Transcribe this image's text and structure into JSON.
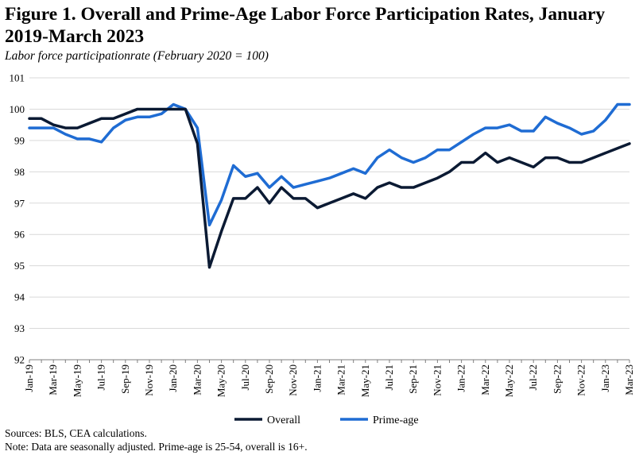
{
  "title": "Figure 1. Overall and Prime-Age Labor Force Participation Rates, January 2019-March 2023",
  "subtitle": "Labor force participationrate (February 2020 = 100)",
  "notes": {
    "sources": "Sources: BLS, CEA calculations.",
    "note": "Note: Data are seasonally adjusted. Prime-age is 25-54, overall is 16+."
  },
  "colors": {
    "overall": "#0b1a33",
    "prime_age": "#1f6cd3",
    "grid": "#d9d9d9"
  },
  "chart_data": {
    "type": "line",
    "x": [
      "Jan-19",
      "Feb-19",
      "Mar-19",
      "Apr-19",
      "May-19",
      "Jun-19",
      "Jul-19",
      "Aug-19",
      "Sep-19",
      "Oct-19",
      "Nov-19",
      "Dec-19",
      "Jan-20",
      "Feb-20",
      "Mar-20",
      "Apr-20",
      "May-20",
      "Jun-20",
      "Jul-20",
      "Aug-20",
      "Sep-20",
      "Oct-20",
      "Nov-20",
      "Dec-20",
      "Jan-21",
      "Feb-21",
      "Mar-21",
      "Apr-21",
      "May-21",
      "Jun-21",
      "Jul-21",
      "Aug-21",
      "Sep-21",
      "Oct-21",
      "Nov-21",
      "Dec-21",
      "Jan-22",
      "Feb-22",
      "Mar-22",
      "Apr-22",
      "May-22",
      "Jun-22",
      "Jul-22",
      "Aug-22",
      "Sep-22",
      "Oct-22",
      "Nov-22",
      "Dec-22",
      "Jan-23",
      "Feb-23",
      "Mar-23"
    ],
    "x_tick_labels": [
      "Jan-19",
      "Mar-19",
      "May-19",
      "Jul-19",
      "Sep-19",
      "Nov-19",
      "Jan-20",
      "Mar-20",
      "May-20",
      "Jul-20",
      "Sep-20",
      "Nov-20",
      "Jan-21",
      "Mar-21",
      "May-21",
      "Jul-21",
      "Sep-21",
      "Nov-21",
      "Jan-22",
      "Mar-22",
      "May-22",
      "Jul-22",
      "Sep-22",
      "Nov-22",
      "Jan-23",
      "Mar-23"
    ],
    "series": [
      {
        "name": "Overall",
        "values": [
          99.7,
          99.7,
          99.5,
          99.4,
          99.4,
          99.55,
          99.7,
          99.7,
          99.85,
          100.0,
          100.0,
          100.0,
          100.0,
          100.0,
          98.9,
          94.95,
          96.1,
          97.15,
          97.15,
          97.5,
          97.0,
          97.5,
          97.15,
          97.15,
          96.85,
          97.0,
          97.15,
          97.3,
          97.15,
          97.5,
          97.65,
          97.5,
          97.5,
          97.65,
          97.8,
          98.0,
          98.3,
          98.3,
          98.6,
          98.3,
          98.45,
          98.3,
          98.15,
          98.45,
          98.45,
          98.3,
          98.3,
          98.45,
          98.6,
          98.75,
          98.9
        ]
      },
      {
        "name": "Prime-age",
        "values": [
          99.4,
          99.4,
          99.4,
          99.2,
          99.05,
          99.05,
          98.95,
          99.4,
          99.65,
          99.75,
          99.75,
          99.85,
          100.15,
          100.0,
          99.4,
          96.3,
          97.1,
          98.2,
          97.85,
          97.95,
          97.5,
          97.85,
          97.5,
          97.6,
          97.7,
          97.8,
          97.95,
          98.1,
          97.95,
          98.45,
          98.7,
          98.45,
          98.3,
          98.45,
          98.7,
          98.7,
          98.95,
          99.2,
          99.4,
          99.4,
          99.5,
          99.3,
          99.3,
          99.75,
          99.55,
          99.4,
          99.2,
          99.3,
          99.65,
          100.15,
          100.15
        ]
      }
    ],
    "ylim": [
      92,
      101
    ],
    "y_ticks": [
      92,
      93,
      94,
      95,
      96,
      97,
      98,
      99,
      100,
      101
    ],
    "grid": true,
    "legend_position": "bottom"
  }
}
